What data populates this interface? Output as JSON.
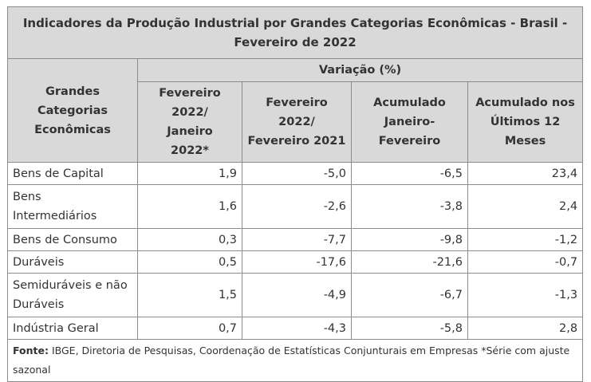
{
  "table": {
    "title": "Indicadores da Produção Industrial por Grandes Categorias Econômicas - Brasil - Fevereiro de 2022",
    "category_header": "Grandes Categorias Econômicas",
    "variation_header": "Variação (%)",
    "columns": [
      "Fevereiro 2022/ Janeiro 2022*",
      "Fevereiro 2022/ Fevereiro 2021",
      "Acumulado Janeiro-Fevereiro",
      "Acumulado nos Últimos 12 Meses"
    ],
    "rows": [
      {
        "category": "Bens de Capital",
        "values": [
          "1,9",
          "-5,0",
          "-6,5",
          "23,4"
        ]
      },
      {
        "category": "Bens Intermediários",
        "values": [
          "1,6",
          "-2,6",
          "-3,8",
          "2,4"
        ]
      },
      {
        "category": "Bens de Consumo",
        "values": [
          "0,3",
          "-7,7",
          "-9,8",
          "-1,2"
        ]
      },
      {
        "category": "Duráveis",
        "values": [
          "0,5",
          "-17,6",
          "-21,6",
          "-0,7"
        ]
      },
      {
        "category": "Semiduráveis e não Duráveis",
        "values": [
          "1,5",
          "-4,9",
          "-6,7",
          "-1,3"
        ]
      },
      {
        "category": "Indústria Geral",
        "values": [
          "0,7",
          "-4,3",
          "-5,8",
          "2,8"
        ]
      }
    ],
    "footnote_label": "Fonte:",
    "footnote_text": " IBGE, Diretoria de Pesquisas, Coordenação de Estatísticas Conjunturais em Empresas *Série com ajuste sazonal"
  }
}
